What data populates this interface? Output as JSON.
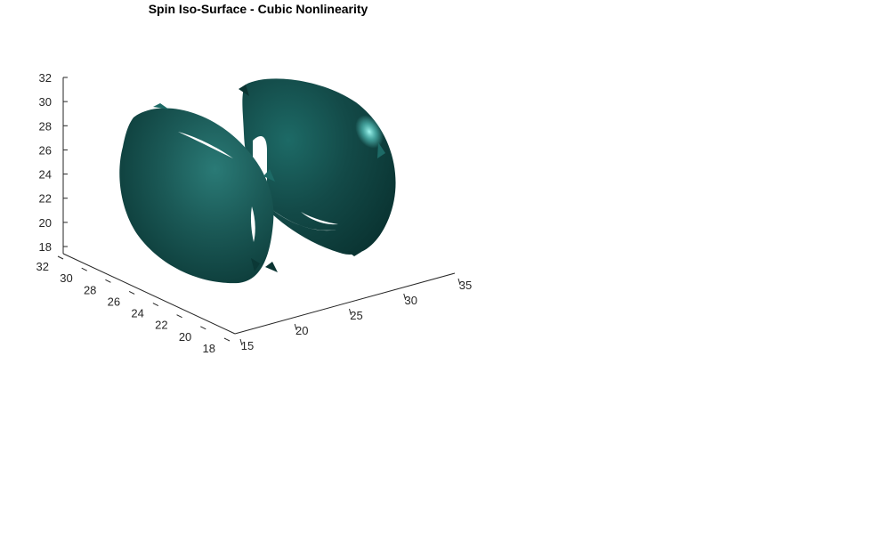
{
  "chart_data": {
    "type": "isosurface",
    "title": "Spin Iso-Surface - Cubic Nonlinearity",
    "xlabel": "",
    "ylabel": "",
    "zlabel": "",
    "x_axis": {
      "ticks": [
        15,
        20,
        25,
        30,
        35
      ],
      "range": [
        15,
        35
      ]
    },
    "y_axis": {
      "ticks": [
        18,
        20,
        22,
        24,
        26,
        28,
        30,
        32
      ],
      "range": [
        18,
        32
      ]
    },
    "z_axis": {
      "ticks": [
        18,
        20,
        22,
        24,
        26,
        28,
        30,
        32
      ],
      "range": [
        18,
        32
      ]
    },
    "surface_color": "#1e5f5c",
    "surface_highlight": "#5fd6cf",
    "surface_shadow": "#0a3432",
    "grid": false,
    "lobes": [
      {
        "name": "",
        "center": [
          20,
          25,
          24
        ]
      },
      {
        "name": "",
        "center": [
          27,
          26,
          25
        ]
      }
    ]
  }
}
